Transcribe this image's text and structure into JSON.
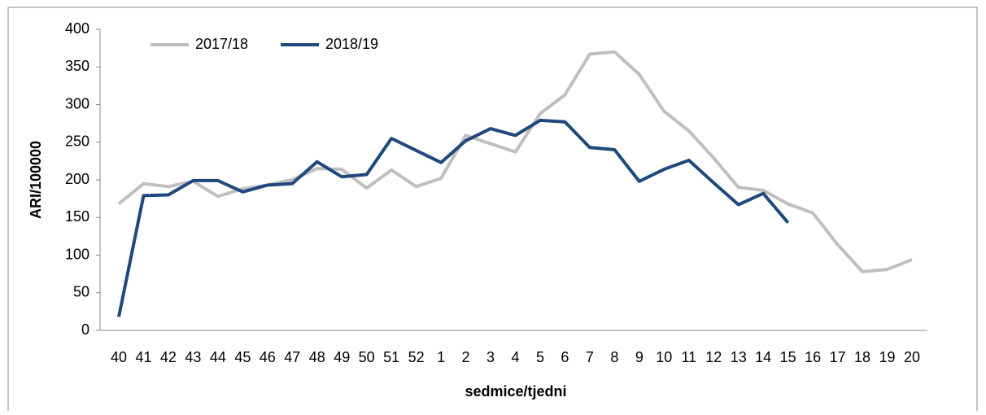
{
  "chart_data": {
    "type": "line",
    "x_label": "sedmice/tjedni",
    "y_label": "ARI/100000",
    "categories": [
      "40",
      "41",
      "42",
      "43",
      "44",
      "45",
      "46",
      "47",
      "48",
      "49",
      "50",
      "51",
      "52",
      "1",
      "2",
      "3",
      "4",
      "5",
      "6",
      "7",
      "8",
      "9",
      "10",
      "11",
      "12",
      "13",
      "14",
      "15",
      "16",
      "17",
      "18",
      "19",
      "20"
    ],
    "series": [
      {
        "name": "2017/18",
        "color": "#bfbfbf",
        "values": [
          168,
          195,
          191,
          198,
          178,
          188,
          193,
          200,
          215,
          214,
          189,
          213,
          191,
          202,
          259,
          248,
          237,
          288,
          313,
          367,
          370,
          340,
          291,
          265,
          229,
          190,
          186,
          168,
          156,
          114,
          78,
          81,
          94
        ]
      },
      {
        "name": "2018/19",
        "color": "#1f497d",
        "values": [
          18,
          179,
          180,
          199,
          199,
          184,
          193,
          195,
          224,
          204,
          207,
          255,
          239,
          223,
          252,
          268,
          259,
          279,
          277,
          243,
          240,
          198,
          214,
          226,
          196,
          167,
          182,
          143,
          null,
          null,
          null,
          null,
          null
        ]
      }
    ],
    "ylim": [
      0,
      400
    ],
    "yticks": [
      0,
      50,
      100,
      150,
      200,
      250,
      300,
      350,
      400
    ],
    "grid": false,
    "legend": "top-left"
  }
}
